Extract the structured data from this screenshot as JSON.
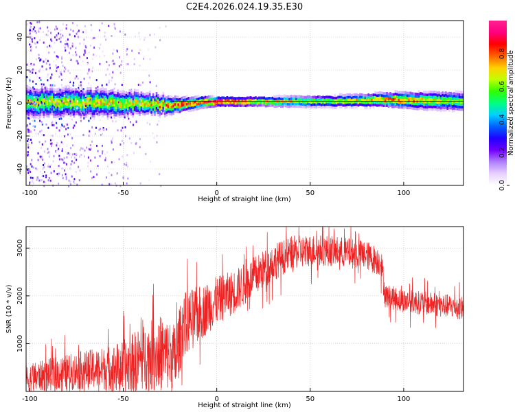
{
  "figure": {
    "title": "C2E4.2026.024.19.35.E30",
    "colors": {
      "snr_line": "#ee2222",
      "axes": "#000000",
      "background": "#ffffff"
    }
  },
  "chart_data": [
    {
      "type": "heatmap",
      "name": "spectrogram",
      "xlabel": "Height of straight line (km)",
      "ylabel": "Frequency (Hz)",
      "xlim": [
        -102,
        132
      ],
      "ylim": [
        -50,
        50
      ],
      "xticks": [
        -100,
        -50,
        0,
        50,
        100
      ],
      "xtick_labels": [
        "-100",
        "-50",
        "0",
        "50",
        "100"
      ],
      "yticks": [
        -40,
        -20,
        0,
        20,
        40
      ],
      "ytick_labels": [
        "-40",
        "-20",
        "0",
        "20",
        "40"
      ],
      "grid": true,
      "colorbar": {
        "label": "Normalized spectral amplitude",
        "range": [
          0,
          1
        ],
        "ticks": [
          0.0,
          0.2,
          0.4,
          0.6,
          0.8
        ],
        "tick_labels": [
          "0.0",
          "0.2",
          "0.4",
          "0.6",
          "0.8"
        ],
        "colormap": [
          "#ffffff",
          "#e8d0ff",
          "#b080ff",
          "#7000ff",
          "#2000ff",
          "#0060ff",
          "#00d0ff",
          "#00ff80",
          "#30ff00",
          "#c0ff00",
          "#ffd000",
          "#ff6000",
          "#ff0000",
          "#ff0080",
          "#ff2090"
        ]
      },
      "ridge": {
        "center_freq_hz": [
          [
            -102,
            0.5
          ],
          [
            -60,
            0
          ],
          [
            -20,
            -1
          ],
          [
            -8,
            0.5
          ],
          [
            0,
            1
          ],
          [
            10,
            1
          ],
          [
            60,
            1
          ],
          [
            90,
            2
          ],
          [
            132,
            1
          ]
        ],
        "width_hz": [
          [
            -102,
            9
          ],
          [
            -60,
            8
          ],
          [
            -30,
            6
          ],
          [
            -15,
            4
          ],
          [
            0,
            3
          ],
          [
            20,
            3
          ],
          [
            80,
            4
          ],
          [
            100,
            5
          ],
          [
            132,
            6
          ]
        ],
        "peak_amplitude": [
          [
            -102,
            0.7
          ],
          [
            -40,
            0.75
          ],
          [
            -10,
            0.9
          ],
          [
            0,
            1.0
          ],
          [
            20,
            0.75
          ],
          [
            60,
            0.65
          ],
          [
            95,
            0.85
          ],
          [
            132,
            0.6
          ]
        ]
      },
      "noise_region_km": [
        -102,
        -25
      ]
    },
    {
      "type": "line",
      "name": "snr",
      "xlabel": "Height of straight line (km)",
      "ylabel": "SNR (10 * v/v)",
      "xlim": [
        -102,
        132
      ],
      "ylim": [
        0,
        3450
      ],
      "xticks": [
        -100,
        -50,
        0,
        50,
        100
      ],
      "xtick_labels": [
        "-100",
        "-50",
        "0",
        "50",
        "100"
      ],
      "yticks": [
        1000,
        2000,
        3000
      ],
      "ytick_labels": [
        "1000",
        "2000",
        "3000"
      ],
      "grid": true,
      "series": [
        {
          "name": "SNR",
          "baseline_x": [
            -102,
            -90,
            -70,
            -50,
            -40,
            -30,
            -22,
            -18,
            -10,
            0,
            10,
            20,
            30,
            40,
            50,
            60,
            70,
            80,
            88,
            90,
            100,
            110,
            120,
            132
          ],
          "baseline_y": [
            250,
            350,
            450,
            500,
            700,
            800,
            700,
            1400,
            1600,
            1900,
            2100,
            2400,
            2700,
            2900,
            2950,
            2950,
            2900,
            2850,
            2700,
            2000,
            1900,
            1850,
            1800,
            1750
          ],
          "noise_amplitude_x": [
            -102,
            -60,
            -30,
            -20,
            0,
            40,
            88,
            90,
            132
          ],
          "noise_amplitude_y": [
            300,
            450,
            800,
            700,
            500,
            350,
            300,
            250,
            250
          ]
        }
      ]
    }
  ]
}
